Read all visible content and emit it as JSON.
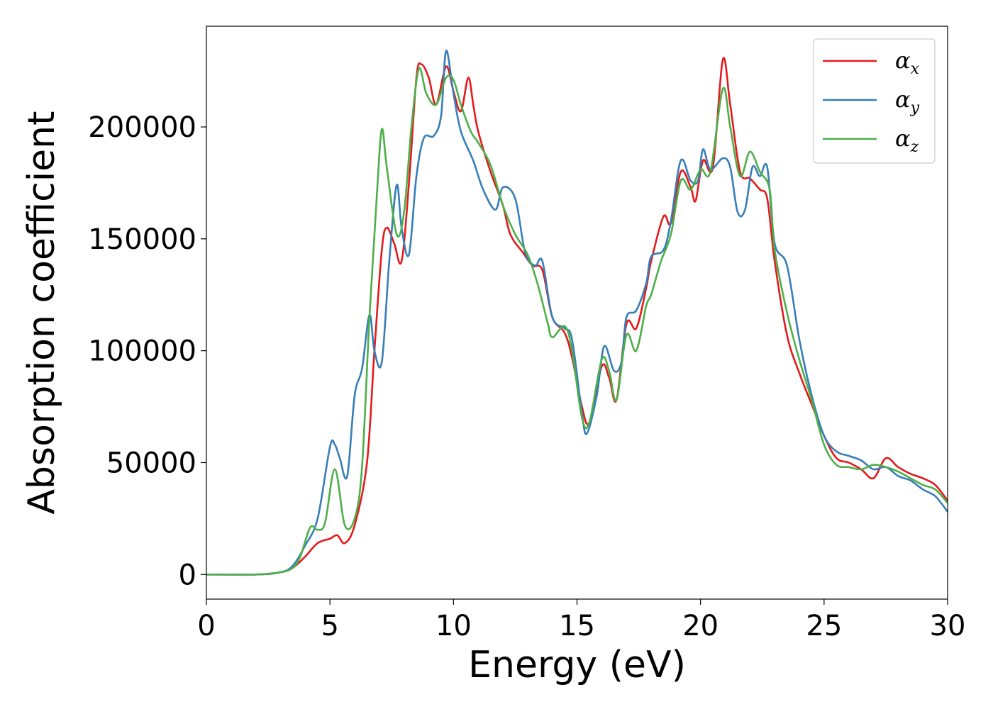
{
  "chart_data": {
    "type": "line",
    "title": "",
    "xlabel": "Energy (eV)",
    "ylabel": "Absorption coefficient",
    "xlim": [
      0,
      30
    ],
    "ylim": [
      -11000,
      245000
    ],
    "grid": false,
    "legend_position": "top-right",
    "xticks": [
      0,
      5,
      10,
      15,
      20,
      25,
      30
    ],
    "xtick_labels": [
      "0",
      "5",
      "10",
      "15",
      "20",
      "25",
      "30"
    ],
    "yticks": [
      0,
      50000,
      100000,
      150000,
      200000
    ],
    "ytick_labels": [
      "0",
      "50000",
      "100000",
      "150000",
      "200000"
    ],
    "series": [
      {
        "name": "αx",
        "symbol": "α",
        "subscript": "x",
        "color": "#e41a1c",
        "points": [
          [
            0,
            0
          ],
          [
            2,
            0
          ],
          [
            3,
            1000
          ],
          [
            3.5,
            3000
          ],
          [
            4,
            8000
          ],
          [
            4.5,
            14000
          ],
          [
            5,
            16000
          ],
          [
            5.3,
            17500
          ],
          [
            5.6,
            14000
          ],
          [
            6,
            22000
          ],
          [
            6.5,
            50000
          ],
          [
            6.8,
            100000
          ],
          [
            7.1,
            145000
          ],
          [
            7.3,
            155000
          ],
          [
            7.6,
            148000
          ],
          [
            7.9,
            140000
          ],
          [
            8.2,
            175000
          ],
          [
            8.5,
            222000
          ],
          [
            8.7,
            228000
          ],
          [
            9,
            222000
          ],
          [
            9.3,
            210000
          ],
          [
            9.7,
            227000
          ],
          [
            10,
            216000
          ],
          [
            10.3,
            207000
          ],
          [
            10.6,
            222000
          ],
          [
            10.8,
            210000
          ],
          [
            11,
            198000
          ],
          [
            11.5,
            180000
          ],
          [
            12,
            165000
          ],
          [
            12.3,
            152000
          ],
          [
            12.8,
            144000
          ],
          [
            13.2,
            138000
          ],
          [
            13.6,
            136000
          ],
          [
            14,
            115000
          ],
          [
            14.5,
            108000
          ],
          [
            14.8,
            97000
          ],
          [
            15.2,
            75000
          ],
          [
            15.5,
            68000
          ],
          [
            16,
            93000
          ],
          [
            16.3,
            88000
          ],
          [
            16.6,
            78000
          ],
          [
            17,
            112000
          ],
          [
            17.4,
            110000
          ],
          [
            17.8,
            128000
          ],
          [
            18,
            140000
          ],
          [
            18.5,
            160000
          ],
          [
            18.8,
            157000
          ],
          [
            19.2,
            180000
          ],
          [
            19.6,
            173000
          ],
          [
            19.8,
            167000
          ],
          [
            20.1,
            185000
          ],
          [
            20.5,
            182000
          ],
          [
            20.9,
            230000
          ],
          [
            21.2,
            210000
          ],
          [
            21.6,
            180000
          ],
          [
            22,
            177000
          ],
          [
            22.4,
            172000
          ],
          [
            22.7,
            168000
          ],
          [
            23,
            140000
          ],
          [
            23.5,
            107000
          ],
          [
            24,
            90000
          ],
          [
            24.5,
            76000
          ],
          [
            25,
            62000
          ],
          [
            25.5,
            52000
          ],
          [
            26,
            50000
          ],
          [
            26.5,
            47000
          ],
          [
            27,
            43000
          ],
          [
            27.5,
            52000
          ],
          [
            28,
            48000
          ],
          [
            28.5,
            45000
          ],
          [
            29,
            43000
          ],
          [
            29.5,
            40000
          ],
          [
            30,
            33000
          ]
        ]
      },
      {
        "name": "αy",
        "symbol": "α",
        "subscript": "y",
        "color": "#377eb8",
        "points": [
          [
            0,
            0
          ],
          [
            2,
            0
          ],
          [
            3,
            1000
          ],
          [
            3.5,
            4000
          ],
          [
            4,
            13000
          ],
          [
            4.5,
            25000
          ],
          [
            5,
            57000
          ],
          [
            5.2,
            58000
          ],
          [
            5.4,
            52000
          ],
          [
            5.7,
            44000
          ],
          [
            6,
            80000
          ],
          [
            6.3,
            92000
          ],
          [
            6.6,
            116000
          ],
          [
            6.8,
            100000
          ],
          [
            7.1,
            95000
          ],
          [
            7.4,
            140000
          ],
          [
            7.7,
            174000
          ],
          [
            7.9,
            155000
          ],
          [
            8.2,
            143000
          ],
          [
            8.5,
            178000
          ],
          [
            8.8,
            195000
          ],
          [
            9.2,
            196000
          ],
          [
            9.5,
            205000
          ],
          [
            9.7,
            234000
          ],
          [
            10,
            215000
          ],
          [
            10.3,
            198000
          ],
          [
            10.8,
            185000
          ],
          [
            11.2,
            172000
          ],
          [
            11.7,
            163000
          ],
          [
            12,
            173000
          ],
          [
            12.5,
            168000
          ],
          [
            12.9,
            144000
          ],
          [
            13.3,
            138000
          ],
          [
            13.6,
            140000
          ],
          [
            14,
            115000
          ],
          [
            14.5,
            110000
          ],
          [
            14.8,
            105000
          ],
          [
            15.2,
            72000
          ],
          [
            15.4,
            63000
          ],
          [
            15.8,
            80000
          ],
          [
            16.1,
            102000
          ],
          [
            16.5,
            91000
          ],
          [
            16.8,
            95000
          ],
          [
            17,
            115000
          ],
          [
            17.4,
            118000
          ],
          [
            17.8,
            130000
          ],
          [
            18,
            142000
          ],
          [
            18.5,
            145000
          ],
          [
            18.8,
            158000
          ],
          [
            19.2,
            185000
          ],
          [
            19.6,
            176000
          ],
          [
            19.9,
            176000
          ],
          [
            20.1,
            190000
          ],
          [
            20.4,
            181000
          ],
          [
            20.9,
            186000
          ],
          [
            21.2,
            182000
          ],
          [
            21.5,
            162000
          ],
          [
            21.8,
            163000
          ],
          [
            22.1,
            182000
          ],
          [
            22.4,
            178000
          ],
          [
            22.7,
            182000
          ],
          [
            23,
            148000
          ],
          [
            23.5,
            138000
          ],
          [
            24,
            105000
          ],
          [
            24.5,
            80000
          ],
          [
            25,
            62000
          ],
          [
            25.5,
            55000
          ],
          [
            26,
            53000
          ],
          [
            26.5,
            51000
          ],
          [
            27,
            47000
          ],
          [
            27.5,
            48000
          ],
          [
            28,
            44000
          ],
          [
            28.5,
            42000
          ],
          [
            29,
            38000
          ],
          [
            29.5,
            35000
          ],
          [
            30,
            28000
          ]
        ]
      },
      {
        "name": "αz",
        "symbol": "α",
        "subscript": "z",
        "color": "#4daf4a",
        "points": [
          [
            0,
            0
          ],
          [
            2,
            0
          ],
          [
            3,
            1000
          ],
          [
            3.5,
            3000
          ],
          [
            3.8,
            8000
          ],
          [
            4.2,
            21000
          ],
          [
            4.5,
            20000
          ],
          [
            4.8,
            23000
          ],
          [
            5.2,
            47000
          ],
          [
            5.6,
            22000
          ],
          [
            6,
            25000
          ],
          [
            6.3,
            48000
          ],
          [
            6.6,
            115000
          ],
          [
            6.9,
            170000
          ],
          [
            7.1,
            199000
          ],
          [
            7.3,
            182000
          ],
          [
            7.7,
            152000
          ],
          [
            8,
            162000
          ],
          [
            8.3,
            200000
          ],
          [
            8.6,
            226000
          ],
          [
            8.9,
            215000
          ],
          [
            9.3,
            210000
          ],
          [
            9.7,
            222000
          ],
          [
            10,
            221000
          ],
          [
            10.3,
            210000
          ],
          [
            10.7,
            198000
          ],
          [
            11,
            193000
          ],
          [
            11.5,
            183000
          ],
          [
            12,
            165000
          ],
          [
            12.5,
            152000
          ],
          [
            13,
            143000
          ],
          [
            13.4,
            130000
          ],
          [
            13.8,
            113000
          ],
          [
            14,
            106000
          ],
          [
            14.5,
            111000
          ],
          [
            14.8,
            100000
          ],
          [
            15.2,
            70000
          ],
          [
            15.5,
            68000
          ],
          [
            16,
            96000
          ],
          [
            16.3,
            91000
          ],
          [
            16.6,
            78000
          ],
          [
            17,
            107000
          ],
          [
            17.4,
            100000
          ],
          [
            17.8,
            120000
          ],
          [
            18,
            125000
          ],
          [
            18.4,
            140000
          ],
          [
            18.8,
            152000
          ],
          [
            19.2,
            176000
          ],
          [
            19.6,
            172000
          ],
          [
            20,
            181000
          ],
          [
            20.4,
            180000
          ],
          [
            20.9,
            217000
          ],
          [
            21.2,
            200000
          ],
          [
            21.6,
            178000
          ],
          [
            22,
            189000
          ],
          [
            22.4,
            180000
          ],
          [
            22.8,
            172000
          ],
          [
            23,
            145000
          ],
          [
            23.5,
            117000
          ],
          [
            24,
            96000
          ],
          [
            24.5,
            78000
          ],
          [
            25,
            58000
          ],
          [
            25.5,
            49000
          ],
          [
            26,
            48000
          ],
          [
            26.5,
            47000
          ],
          [
            27,
            49000
          ],
          [
            27.5,
            48000
          ],
          [
            28,
            46000
          ],
          [
            28.5,
            43000
          ],
          [
            29,
            40000
          ],
          [
            29.5,
            38000
          ],
          [
            30,
            32000
          ]
        ]
      }
    ]
  }
}
